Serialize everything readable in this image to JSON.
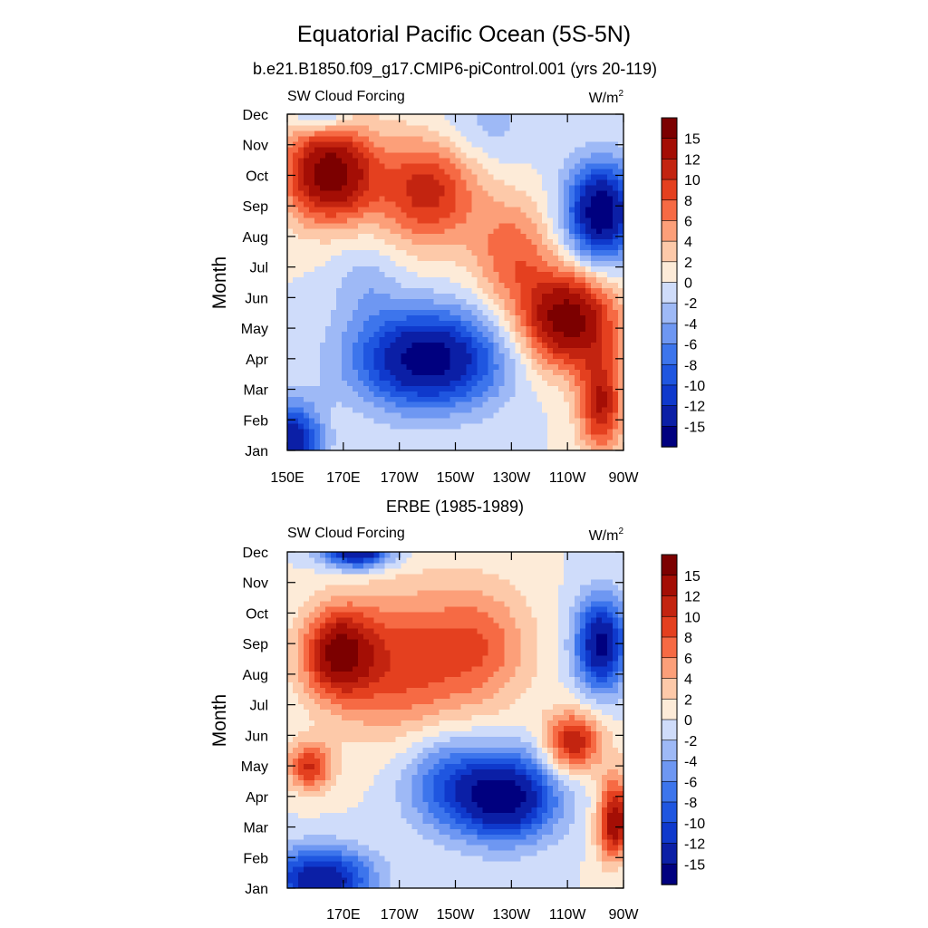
{
  "chart_data": {
    "type": "heatmap",
    "title": "Equatorial Pacific Ocean (5S-5N)",
    "panels": [
      {
        "subtitle": "b.e21.B1850.f09_g17.CMIP6-piControl.001 (yrs 20-119)",
        "left_label": "SW Cloud Forcing",
        "units_base": "W/m",
        "units_exp": "2",
        "ylabel": "Month",
        "months": [
          "Jan",
          "Feb",
          "Mar",
          "Apr",
          "May",
          "Jun",
          "Jul",
          "Aug",
          "Sep",
          "Oct",
          "Nov",
          "Dec"
        ],
        "x_ticks": [
          "150E",
          "170E",
          "170W",
          "150W",
          "130W",
          "110W",
          "90W"
        ],
        "lon_range": [
          150,
          270
        ],
        "features": [
          {
            "lon": 165,
            "month": 9.1,
            "value": 17,
            "slon": 16,
            "sm": 1.6
          },
          {
            "lon": 200,
            "month": 8.5,
            "value": 11,
            "slon": 18,
            "sm": 1.8
          },
          {
            "lon": 250,
            "month": 4.3,
            "value": 17,
            "slon": 17,
            "sm": 1.6
          },
          {
            "lon": 230,
            "month": 6.5,
            "value": 7,
            "slon": 14,
            "sm": 1.8
          },
          {
            "lon": 262,
            "month": 1.5,
            "value": 12,
            "slon": 8,
            "sm": 1.6
          },
          {
            "lon": 200,
            "month": 3.0,
            "value": -17,
            "slon": 26,
            "sm": 1.6
          },
          {
            "lon": 152,
            "month": 0.2,
            "value": -15,
            "slon": 10,
            "sm": 1.3
          },
          {
            "lon": 262,
            "month": 7.8,
            "value": -18,
            "slon": 12,
            "sm": 1.6
          },
          {
            "lon": 178,
            "month": 5.5,
            "value": -3,
            "slon": 12,
            "sm": 1.4
          },
          {
            "lon": 220,
            "month": 10.6,
            "value": -3,
            "slon": 18,
            "sm": 1.4
          },
          {
            "lon": 162,
            "month": 11.0,
            "value": -6,
            "slon": 10,
            "sm": 0.6
          }
        ]
      },
      {
        "subtitle": "ERBE (1985-1989)",
        "left_label": "SW Cloud Forcing",
        "units_base": "W/m",
        "units_exp": "2",
        "ylabel": "Month",
        "months": [
          "Jan",
          "Feb",
          "Mar",
          "Apr",
          "May",
          "Jun",
          "Jul",
          "Aug",
          "Sep",
          "Oct",
          "Nov",
          "Dec"
        ],
        "x_ticks": [
          "170E",
          "170W",
          "150W",
          "130W",
          "110W",
          "90W"
        ],
        "lon_range": [
          150,
          270
        ],
        "features": [
          {
            "lon": 168,
            "month": 7.7,
            "value": 13,
            "slon": 12,
            "sm": 1.4
          },
          {
            "lon": 190,
            "month": 7.4,
            "value": 9,
            "slon": 26,
            "sm": 2.4
          },
          {
            "lon": 220,
            "month": 8.0,
            "value": 6,
            "slon": 18,
            "sm": 2.0
          },
          {
            "lon": 158,
            "month": 4.0,
            "value": 10,
            "slon": 8,
            "sm": 0.8
          },
          {
            "lon": 252,
            "month": 4.8,
            "value": 12,
            "slon": 10,
            "sm": 1.0
          },
          {
            "lon": 267,
            "month": 2.0,
            "value": 15,
            "slon": 6,
            "sm": 1.6
          },
          {
            "lon": 228,
            "month": 3.0,
            "value": -17,
            "slon": 18,
            "sm": 1.4
          },
          {
            "lon": 206,
            "month": 3.5,
            "value": -7,
            "slon": 16,
            "sm": 1.6
          },
          {
            "lon": 162,
            "month": 0.3,
            "value": -15,
            "slon": 18,
            "sm": 1.0
          },
          {
            "lon": 175,
            "month": 11.1,
            "value": -17,
            "slon": 12,
            "sm": 0.6
          },
          {
            "lon": 262,
            "month": 8.0,
            "value": -16,
            "slon": 9,
            "sm": 1.5
          },
          {
            "lon": 268,
            "month": 0.8,
            "value": -5,
            "slon": 6,
            "sm": 1.0
          }
        ]
      }
    ],
    "colorbar": {
      "levels": [
        -15,
        -12,
        -10,
        -8,
        -6,
        -4,
        -2,
        0,
        2,
        4,
        6,
        8,
        10,
        12,
        15
      ],
      "labels": [
        "15",
        "12",
        "10",
        "8",
        "6",
        "4",
        "2",
        "0",
        "-2",
        "-4",
        "-6",
        "-8",
        "-10",
        "-12",
        "-15"
      ],
      "colors": [
        "#00007f",
        "#0b1fa6",
        "#0f39cc",
        "#1f56e0",
        "#3d75ec",
        "#6e97f2",
        "#9eb9f6",
        "#cfdcfa",
        "#fdebd8",
        "#fdc9a9",
        "#fc9f79",
        "#f66a44",
        "#e4401f",
        "#c32410",
        "#a40e05",
        "#7c0000"
      ]
    }
  }
}
